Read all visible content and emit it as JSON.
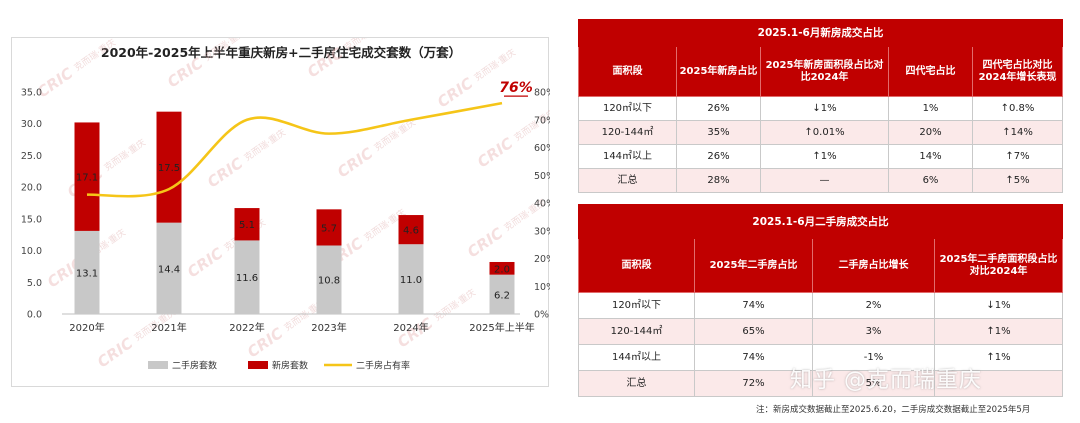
{
  "chart_data": {
    "type": "bar",
    "title": "2020年-2025年上半年重庆新房+二手房住宅成交套数（万套）",
    "categories": [
      "2020年",
      "2021年",
      "2022年",
      "2023年",
      "2024年",
      "2025年上半年"
    ],
    "series": [
      {
        "name": "二手房套数",
        "kind": "stacked-bar",
        "color": "#c8c8c8",
        "values": [
          13.1,
          14.4,
          11.6,
          10.8,
          11.0,
          6.2
        ]
      },
      {
        "name": "新房套数",
        "kind": "stacked-bar",
        "color": "#c00000",
        "values": [
          17.1,
          17.5,
          5.1,
          5.7,
          4.6,
          2.0
        ]
      },
      {
        "name": "二手房占有率",
        "kind": "line",
        "axis": "right",
        "color": "#f5c518",
        "values": [
          43,
          45,
          70,
          65,
          70,
          76
        ]
      }
    ],
    "ylim": [
      0,
      35
    ],
    "yticks": [
      "0.0",
      "5.0",
      "10.0",
      "15.0",
      "20.0",
      "25.0",
      "30.0",
      "35.0"
    ],
    "y2lim": [
      0,
      80
    ],
    "y2ticks": [
      "0%",
      "10%",
      "20%",
      "30%",
      "40%",
      "50%",
      "60%",
      "70%",
      "80%"
    ],
    "highlight_label": "76%",
    "legend_position": "bottom",
    "grid": false
  },
  "table1": {
    "title": "2025.1-6月新房成交占比",
    "headers": [
      "面积段",
      "2025年新房占比",
      "2025年新房面积段占比对比2024年",
      "四代宅占比",
      "四代宅占比对比2024年增长表现"
    ],
    "rows": [
      [
        "120㎡以下",
        "26%",
        "↓1%",
        "1%",
        "↑0.8%"
      ],
      [
        "120-144㎡",
        "35%",
        "↑0.01%",
        "20%",
        "↑14%"
      ],
      [
        "144㎡以上",
        "26%",
        "↑1%",
        "14%",
        "↑7%"
      ],
      [
        "汇总",
        "28%",
        "—",
        "6%",
        "↑5%"
      ]
    ]
  },
  "table2": {
    "title": "2025.1-6月二手房成交占比",
    "headers": [
      "面积段",
      "2025年二手房占比",
      "二手房占比增长",
      "2025年二手房面积段占比对比2024年"
    ],
    "rows": [
      [
        "120㎡以下",
        "74%",
        "2%",
        "↓1%"
      ],
      [
        "120-144㎡",
        "65%",
        "3%",
        "↑1%"
      ],
      [
        "144㎡以上",
        "74%",
        "-1%",
        "↑1%"
      ],
      [
        "汇总",
        "72%",
        "5%",
        ""
      ]
    ]
  },
  "watermark": {
    "text": "知乎 @克而瑞重庆",
    "logo": "CRIC",
    "logo_cn": "克而瑞·重庆"
  },
  "footnote": "注：新房成交数据截止至2025.6.20，二手房成交数据截止至2025年5月",
  "colors": {
    "accent": "#c00000",
    "up": "#c00000",
    "down": "#1a9a3a",
    "line": "#f5c518",
    "bar_grey": "#c8c8c8"
  }
}
